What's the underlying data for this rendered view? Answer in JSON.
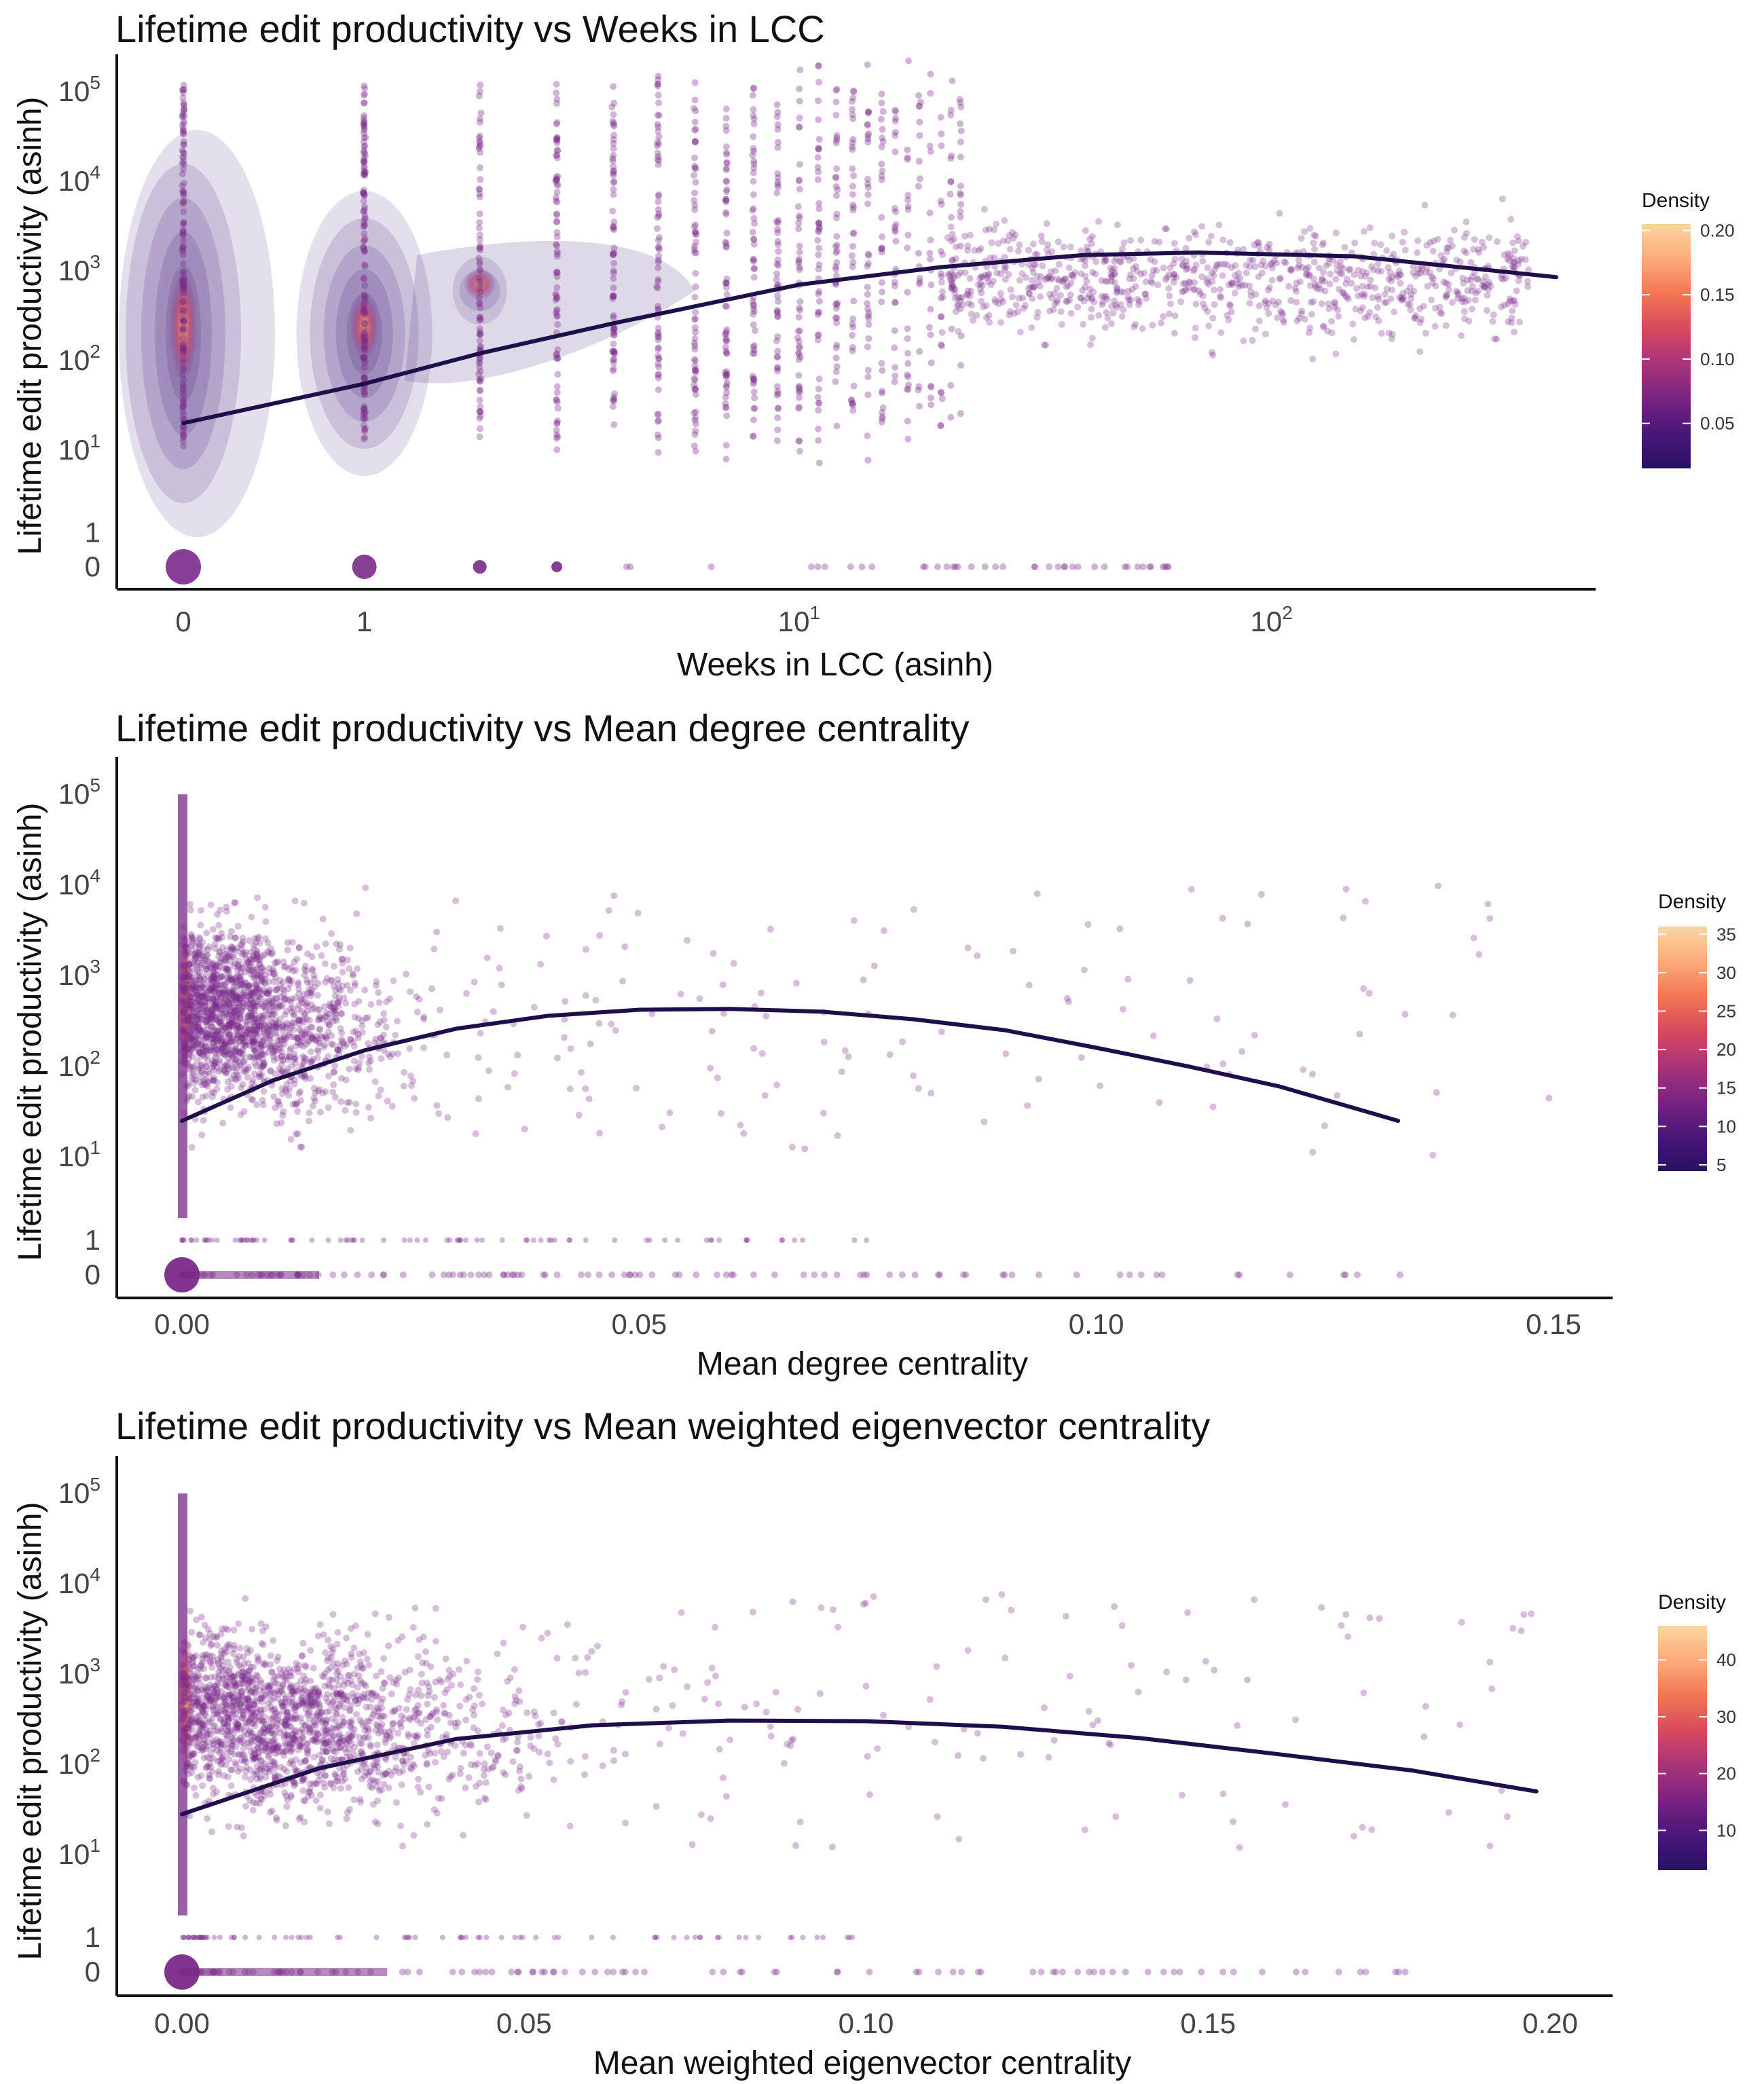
{
  "chart_data": [
    {
      "type": "scatter",
      "title": "Lifetime edit productivity vs Weeks in LCC",
      "xlabel": "Weeks in LCC (asinh)",
      "ylabel": "Lifetime edit productivity (asinh)",
      "x_scale": "asinh",
      "y_scale": "asinh",
      "xlim": [
        0,
        400
      ],
      "ylim": [
        0,
        200000
      ],
      "x_ticks": [
        {
          "value": 0,
          "base": "0",
          "exp": ""
        },
        {
          "value": 1,
          "base": "1",
          "exp": ""
        },
        {
          "value": 10,
          "base": "10",
          "exp": "1"
        },
        {
          "value": 100,
          "base": "10",
          "exp": "2"
        }
      ],
      "y_ticks": [
        {
          "value": 0,
          "base": "0",
          "exp": ""
        },
        {
          "value": 1,
          "base": "1",
          "exp": ""
        },
        {
          "value": 10,
          "base": "10",
          "exp": "1"
        },
        {
          "value": 100,
          "base": "10",
          "exp": "2"
        },
        {
          "value": 1000,
          "base": "10",
          "exp": "3"
        },
        {
          "value": 10000,
          "base": "10",
          "exp": "4"
        },
        {
          "value": 100000,
          "base": "10",
          "exp": "5"
        }
      ],
      "density_contours": true,
      "grid": false,
      "legend": {
        "title": "Density",
        "position": "right",
        "ticks": [
          "0.05",
          "0.10",
          "0.15",
          "0.20"
        ],
        "range": [
          0.015,
          0.205
        ]
      },
      "trend_line": [
        [
          0,
          20
        ],
        [
          1,
          55
        ],
        [
          2,
          120
        ],
        [
          4,
          260
        ],
        [
          10,
          700
        ],
        [
          20,
          1100
        ],
        [
          40,
          1500
        ],
        [
          70,
          1600
        ],
        [
          150,
          1450
        ],
        [
          400,
          850
        ]
      ]
    },
    {
      "type": "scatter",
      "title": "Lifetime edit productivity vs Mean degree centrality",
      "xlabel": "Mean degree centrality",
      "ylabel": "Lifetime edit productivity (asinh)",
      "y_scale": "asinh",
      "xlim": [
        0,
        0.15
      ],
      "ylim": [
        0,
        200000
      ],
      "x_ticks": [
        {
          "value": 0,
          "base": "0.00",
          "exp": ""
        },
        {
          "value": 0.05,
          "base": "0.05",
          "exp": ""
        },
        {
          "value": 0.1,
          "base": "0.10",
          "exp": ""
        },
        {
          "value": 0.15,
          "base": "0.15",
          "exp": ""
        }
      ],
      "y_ticks": [
        {
          "value": 0,
          "base": "0",
          "exp": ""
        },
        {
          "value": 1,
          "base": "1",
          "exp": ""
        },
        {
          "value": 10,
          "base": "10",
          "exp": "1"
        },
        {
          "value": 100,
          "base": "10",
          "exp": "2"
        },
        {
          "value": 1000,
          "base": "10",
          "exp": "3"
        },
        {
          "value": 10000,
          "base": "10",
          "exp": "4"
        },
        {
          "value": 100000,
          "base": "10",
          "exp": "5"
        }
      ],
      "grid": false,
      "legend": {
        "title": "Density",
        "position": "right",
        "ticks": [
          "5",
          "10",
          "15",
          "20",
          "25",
          "30",
          "35"
        ],
        "range": [
          4.2,
          36
        ]
      },
      "trend_line": [
        [
          0,
          25
        ],
        [
          0.01,
          70
        ],
        [
          0.02,
          150
        ],
        [
          0.03,
          260
        ],
        [
          0.04,
          360
        ],
        [
          0.05,
          420
        ],
        [
          0.06,
          430
        ],
        [
          0.07,
          400
        ],
        [
          0.08,
          330
        ],
        [
          0.09,
          250
        ],
        [
          0.1,
          160
        ],
        [
          0.11,
          100
        ],
        [
          0.12,
          60
        ],
        [
          0.133,
          25
        ]
      ]
    },
    {
      "type": "scatter",
      "title": "Lifetime edit productivity vs Mean weighted eigenvector centrality",
      "xlabel": "Mean weighted eigenvector centrality",
      "ylabel": "Lifetime edit productivity (asinh)",
      "y_scale": "asinh",
      "xlim": [
        0,
        0.2
      ],
      "ylim": [
        0,
        200000
      ],
      "x_ticks": [
        {
          "value": 0,
          "base": "0.00",
          "exp": ""
        },
        {
          "value": 0.05,
          "base": "0.05",
          "exp": ""
        },
        {
          "value": 0.1,
          "base": "0.10",
          "exp": ""
        },
        {
          "value": 0.15,
          "base": "0.15",
          "exp": ""
        },
        {
          "value": 0.2,
          "base": "0.20",
          "exp": ""
        }
      ],
      "y_ticks": [
        {
          "value": 0,
          "base": "0",
          "exp": ""
        },
        {
          "value": 1,
          "base": "1",
          "exp": ""
        },
        {
          "value": 10,
          "base": "10",
          "exp": "1"
        },
        {
          "value": 100,
          "base": "10",
          "exp": "2"
        },
        {
          "value": 1000,
          "base": "10",
          "exp": "3"
        },
        {
          "value": 10000,
          "base": "10",
          "exp": "4"
        },
        {
          "value": 100000,
          "base": "10",
          "exp": "5"
        }
      ],
      "grid": false,
      "legend": {
        "title": "Density",
        "position": "right",
        "ticks": [
          "10",
          "20",
          "30",
          "40"
        ],
        "range": [
          3,
          46
        ]
      },
      "trend_line": [
        [
          0,
          28
        ],
        [
          0.02,
          90
        ],
        [
          0.04,
          190
        ],
        [
          0.06,
          270
        ],
        [
          0.08,
          305
        ],
        [
          0.1,
          300
        ],
        [
          0.12,
          260
        ],
        [
          0.14,
          195
        ],
        [
          0.16,
          130
        ],
        [
          0.18,
          85
        ],
        [
          0.198,
          50
        ]
      ]
    }
  ],
  "colors": {
    "points": "#7a2a8a",
    "line": "#1e0f4a",
    "contour": "#5a3a8a",
    "axis": "#111111",
    "scale": [
      "#271262",
      "#4b1679",
      "#7a2382",
      "#a83479",
      "#d7495f",
      "#f37651",
      "#fcab79",
      "#fdd5a0"
    ]
  }
}
